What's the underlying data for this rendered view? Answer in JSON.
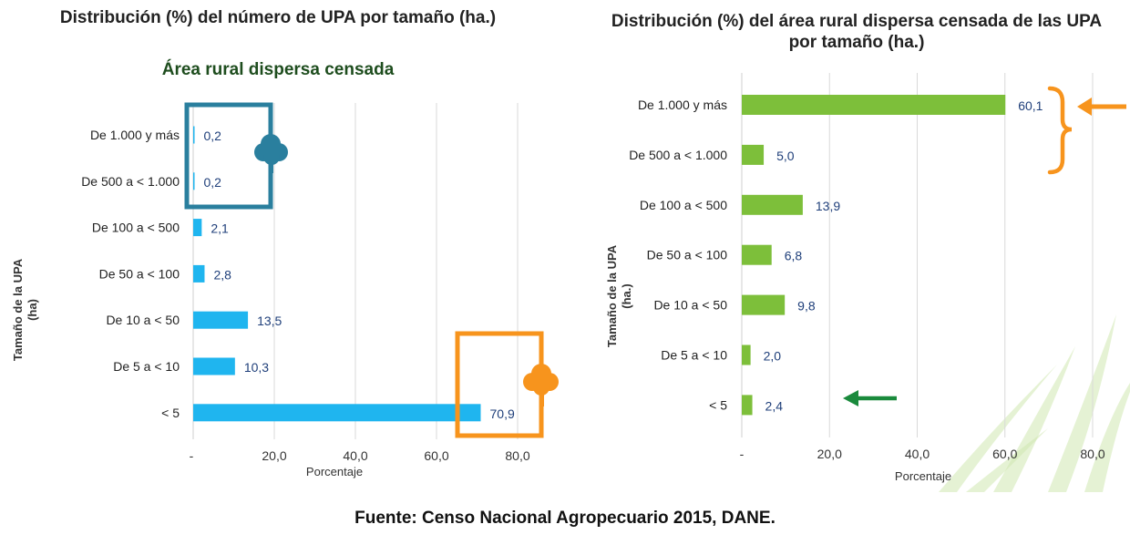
{
  "charts": [
    {
      "title": "Distribución (%) del número de UPA por tamaño (ha.)",
      "subtitle": "Área rural dispersa censada",
      "ylabel": "Tamaño de la UPA (ha)",
      "xlabel": "Porcentaje",
      "bar_color": "#1fb5ef"
    },
    {
      "title": "Distribución (%) del área rural dispersa censada de las UPA por tamaño (ha.)",
      "ylabel": "Tamaño de la UPA (ha.)",
      "xlabel": "Porcentaje",
      "bar_color": "#7dbf3a"
    }
  ],
  "source": "Fuente: Censo Nacional Agropecuario 2015, DANE.",
  "colors": {
    "teal_highlight": "#2a7f9e",
    "orange_highlight": "#f7941d",
    "green_arrow": "#1a8a3c",
    "value_label": "#1f3f7a"
  },
  "icons": [
    "tree-icon",
    "left-arrow-icon",
    "curly-brace-icon"
  ],
  "chart_data": [
    {
      "type": "bar",
      "orientation": "horizontal",
      "title": "Distribución (%) del número de UPA por tamaño (ha.)",
      "subtitle": "Área rural dispersa censada",
      "xlabel": "Porcentaje",
      "ylabel": "Tamaño de la UPA (ha)",
      "categories": [
        "De 1.000 y más",
        "De 500 a < 1.000",
        "De 100 a < 500",
        "De 50 a < 100",
        "De 10 a < 50",
        "De 5 a < 10",
        "< 5"
      ],
      "values": [
        0.2,
        0.2,
        2.1,
        2.8,
        13.5,
        10.3,
        70.9
      ],
      "value_labels": [
        "0,2",
        "0,2",
        "2,1",
        "2,8",
        "13,5",
        "10,3",
        "70,9"
      ],
      "xlim": [
        0,
        80
      ],
      "ticks": [
        0,
        20,
        40,
        60,
        80
      ],
      "tick_labels": [
        "-",
        "20,0",
        "40,0",
        "60,0",
        "80,0"
      ],
      "grid": true
    },
    {
      "type": "bar",
      "orientation": "horizontal",
      "title": "Distribución (%) del área rural dispersa censada de las UPA por tamaño (ha.)",
      "xlabel": "Porcentaje",
      "ylabel": "Tamaño de la UPA (ha.)",
      "categories": [
        "De 1.000 y más",
        "De 500 a < 1.000",
        "De 100 a < 500",
        "De 50 a < 100",
        "De 10 a < 50",
        "De 5 a < 10",
        "< 5"
      ],
      "values": [
        60.1,
        5.0,
        13.9,
        6.8,
        9.8,
        2.0,
        2.4
      ],
      "value_labels": [
        "60,1",
        "5,0",
        "13,9",
        "6,8",
        "9,8",
        "2,0",
        "2,4"
      ],
      "xlim": [
        0,
        80
      ],
      "ticks": [
        0,
        20,
        40,
        60,
        80
      ],
      "tick_labels": [
        "-",
        "20,0",
        "40,0",
        "60,0",
        "80,0"
      ],
      "grid": true
    }
  ]
}
